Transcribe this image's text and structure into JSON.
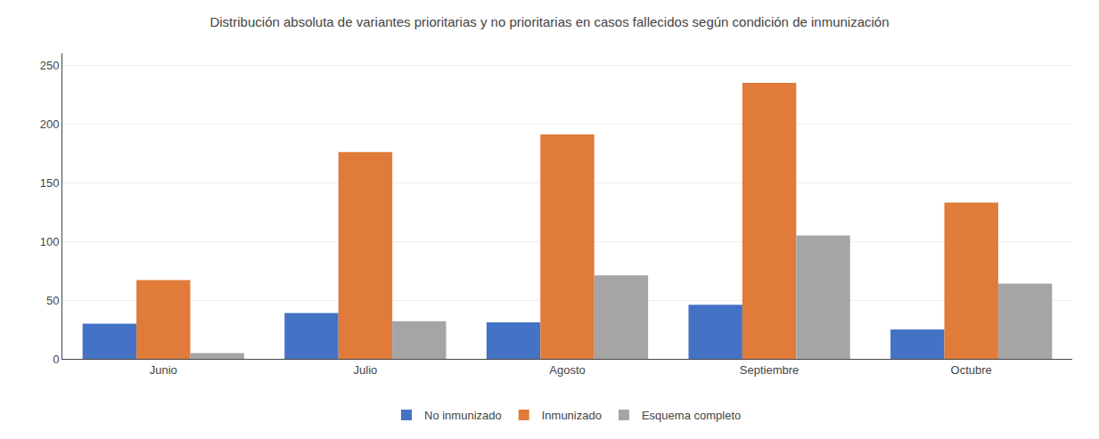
{
  "chart_data": {
    "type": "bar",
    "title": "Distribución absoluta de variantes prioritarias y no prioritarias en casos fallecidos según condición de inmunización",
    "categories": [
      "Junio",
      "Julio",
      "Agosto",
      "Septiembre",
      "Octubre"
    ],
    "series": [
      {
        "name": "No inmunizado",
        "color": "#4472c4",
        "values": [
          30,
          39,
          31,
          46,
          25
        ]
      },
      {
        "name": "Inmunizado",
        "color": "#e07b39",
        "values": [
          67,
          176,
          191,
          235,
          133
        ]
      },
      {
        "name": "Esquema completo",
        "color": "#a5a5a5",
        "values": [
          5,
          32,
          71,
          105,
          64
        ]
      }
    ],
    "ylim": [
      0,
      260
    ],
    "yticks": [
      0,
      50,
      100,
      150,
      200,
      250
    ],
    "grid": true,
    "legend": "bottom"
  }
}
